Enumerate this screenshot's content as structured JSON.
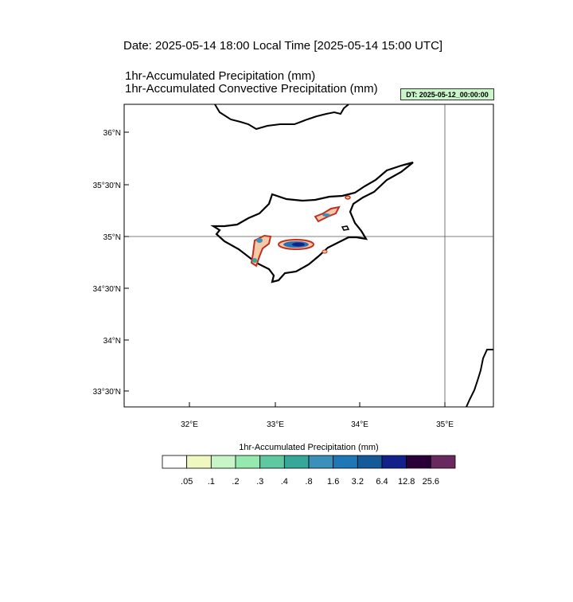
{
  "header": {
    "date_title": "Date: 2025-05-14  18:00 Local Time [2025-05-14  15:00 UTC]",
    "title_line1": "1hr-Accumulated Precipitation   (mm)",
    "title_line2": "1hr-Accumulated Convective Precipitation   (mm)",
    "dt_badge": "DT: 2025-05-12_00:00:00"
  },
  "map": {
    "lat_labels": [
      "36°N",
      "35°30'N",
      "35°N",
      "34°30'N",
      "34°N",
      "33°30'N"
    ],
    "lon_labels": [
      "32°E",
      "33°E",
      "34°E",
      "35°E"
    ],
    "gridline_lat": "35°N",
    "gridline_lon": "35°E"
  },
  "colorbar": {
    "title": "1hr-Accumulated Precipitation  (mm)",
    "labels": [
      ".05",
      ".1",
      ".2",
      ".3",
      ".4",
      ".8",
      "1.6",
      "3.2",
      "6.4",
      "12.8",
      "25.6"
    ],
    "colors": [
      "#ffffff",
      "#eef8c0",
      "#c8f5c8",
      "#95e8b0",
      "#5ec8a0",
      "#35a89a",
      "#3a90b8",
      "#1e78b8",
      "#155a98",
      "#12228a",
      "#2a003a",
      "#6a2860"
    ]
  }
}
